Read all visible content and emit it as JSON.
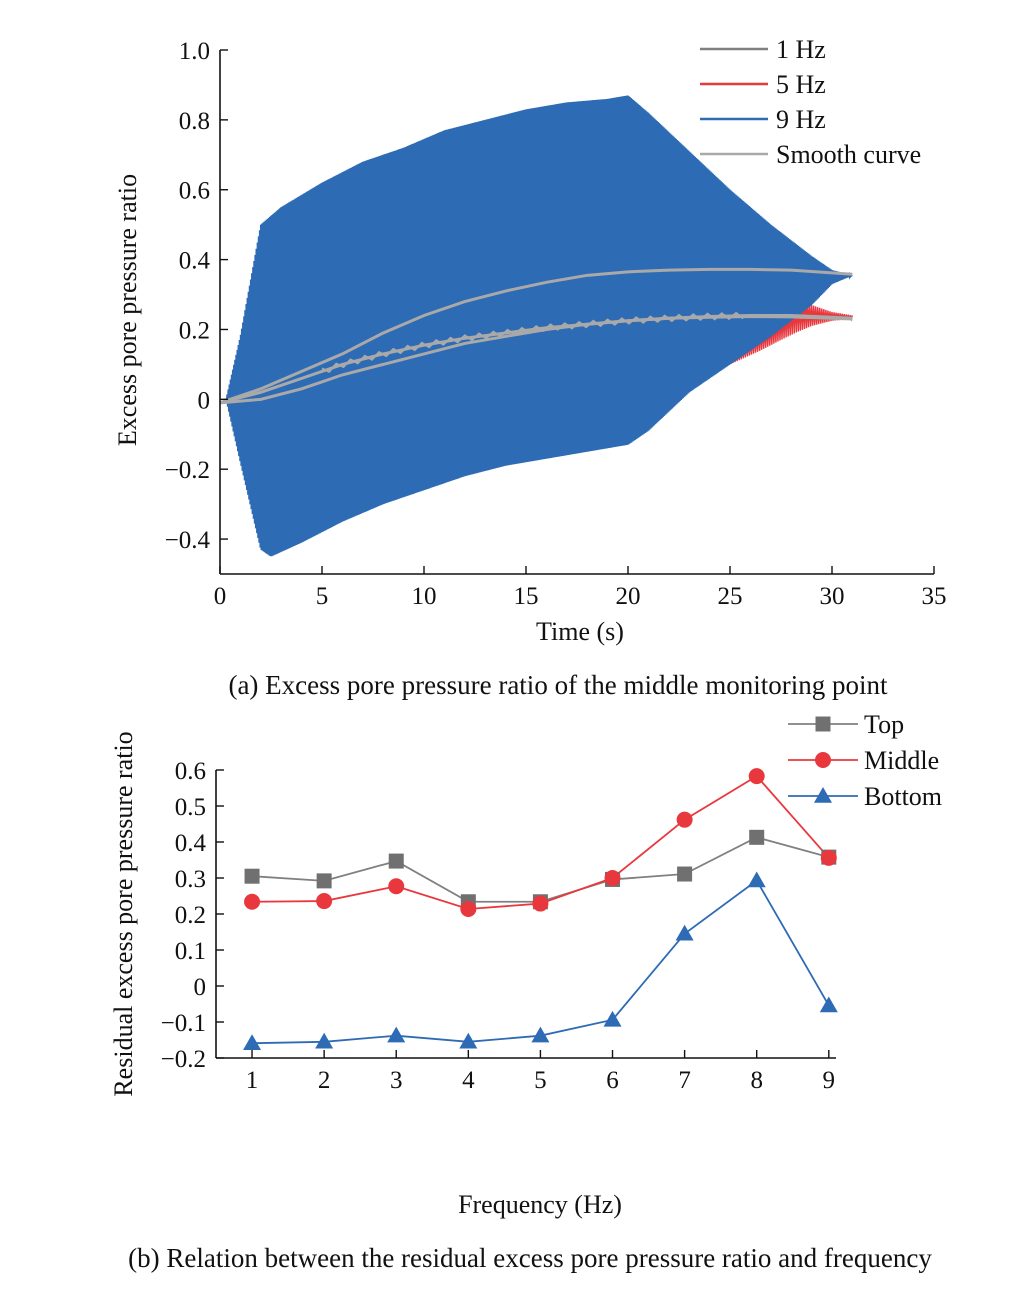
{
  "chart_data": [
    {
      "type": "line",
      "title": "",
      "caption": "(a) Excess pore pressure ratio of the middle monitoring point",
      "xlabel": "Time (s)",
      "ylabel": "Excess pore pressure ratio",
      "xlim": [
        0,
        35
      ],
      "ylim": [
        -0.5,
        1.0
      ],
      "x_ticks": [
        0,
        5,
        10,
        15,
        20,
        25,
        30,
        35
      ],
      "x_tick_labels": [
        "0",
        "5",
        "10",
        "15",
        "20",
        "25",
        "30",
        "35"
      ],
      "y_ticks": [
        -0.4,
        -0.2,
        0,
        0.2,
        0.4,
        0.6,
        0.8,
        1.0
      ],
      "y_tick_labels": [
        "−0.4",
        "−0.2",
        "0",
        "0.2",
        "0.4",
        "0.6",
        "0.8",
        "1.0"
      ],
      "legend_position": "top-right",
      "series": [
        {
          "name": "1 Hz",
          "color": "#808080",
          "envelope_upper": [
            [
              0.2,
              0
            ],
            [
              2,
              0.02
            ],
            [
              4,
              0.08
            ],
            [
              6,
              0.12
            ],
            [
              8,
              0.15
            ],
            [
              10,
              0.17
            ],
            [
              12,
              0.19
            ],
            [
              14,
              0.205
            ],
            [
              16,
              0.215
            ],
            [
              18,
              0.225
            ],
            [
              20,
              0.232
            ],
            [
              22,
              0.237
            ],
            [
              24,
              0.24
            ],
            [
              26,
              0.24
            ],
            [
              28,
              0.24
            ],
            [
              30,
              0.238
            ],
            [
              31,
              0.235
            ]
          ],
          "envelope_lower": [
            [
              0.2,
              0
            ],
            [
              2,
              0.01
            ],
            [
              4,
              0.04
            ],
            [
              6,
              0.07
            ],
            [
              8,
              0.1
            ],
            [
              10,
              0.13
            ],
            [
              12,
              0.16
            ],
            [
              14,
              0.18
            ],
            [
              16,
              0.2
            ],
            [
              18,
              0.215
            ],
            [
              20,
              0.225
            ],
            [
              22,
              0.232
            ],
            [
              24,
              0.235
            ],
            [
              26,
              0.235
            ],
            [
              28,
              0.232
            ],
            [
              30,
              0.23
            ],
            [
              31,
              0.228
            ]
          ]
        },
        {
          "name": "5 Hz",
          "color": "#e8383d",
          "envelope_upper": [
            [
              23.5,
              0.08
            ],
            [
              25,
              0.14
            ],
            [
              26.5,
              0.2
            ],
            [
              27.5,
              0.25
            ],
            [
              28.2,
              0.29
            ],
            [
              29,
              0.27
            ],
            [
              30,
              0.25
            ],
            [
              31,
              0.24
            ]
          ],
          "envelope_lower": [
            [
              23.5,
              0.06
            ],
            [
              25,
              0.1
            ],
            [
              26.5,
              0.14
            ],
            [
              27.5,
              0.17
            ],
            [
              28.2,
              0.19
            ],
            [
              29,
              0.21
            ],
            [
              30,
              0.225
            ],
            [
              31,
              0.23
            ]
          ]
        },
        {
          "name": "9 Hz",
          "color": "#2e6bb5",
          "envelope_upper": [
            [
              0.3,
              0.0
            ],
            [
              1,
              0.18
            ],
            [
              2,
              0.5
            ],
            [
              3,
              0.55
            ],
            [
              5,
              0.62
            ],
            [
              7,
              0.68
            ],
            [
              9,
              0.72
            ],
            [
              11,
              0.77
            ],
            [
              13,
              0.8
            ],
            [
              15,
              0.83
            ],
            [
              17,
              0.85
            ],
            [
              19,
              0.86
            ],
            [
              20,
              0.87
            ],
            [
              21,
              0.82
            ],
            [
              23,
              0.71
            ],
            [
              25,
              0.6
            ],
            [
              27,
              0.5
            ],
            [
              29,
              0.41
            ],
            [
              30,
              0.37
            ],
            [
              31,
              0.355
            ]
          ],
          "envelope_lower": [
            [
              0.3,
              0.0
            ],
            [
              1,
              -0.18
            ],
            [
              2,
              -0.43
            ],
            [
              2.5,
              -0.45
            ],
            [
              4,
              -0.41
            ],
            [
              6,
              -0.35
            ],
            [
              8,
              -0.3
            ],
            [
              10,
              -0.26
            ],
            [
              12,
              -0.22
            ],
            [
              14,
              -0.19
            ],
            [
              16,
              -0.17
            ],
            [
              18,
              -0.15
            ],
            [
              20,
              -0.13
            ],
            [
              21,
              -0.09
            ],
            [
              23,
              0.02
            ],
            [
              25,
              0.1
            ],
            [
              27,
              0.18
            ],
            [
              29,
              0.27
            ],
            [
              30,
              0.33
            ],
            [
              31,
              0.355
            ]
          ]
        },
        {
          "name": "Smooth curve",
          "color": "#a9a9a9",
          "curves": [
            {
              "label": "9 Hz",
              "x": [
                0,
                2,
                4,
                6,
                8,
                10,
                12,
                14,
                16,
                18,
                20,
                22,
                24,
                26,
                28,
                30,
                31
              ],
              "y": [
                -0.01,
                0.03,
                0.08,
                0.13,
                0.19,
                0.24,
                0.28,
                0.31,
                0.335,
                0.355,
                0.365,
                0.37,
                0.372,
                0.372,
                0.37,
                0.362,
                0.358
              ]
            },
            {
              "label": "5 Hz",
              "x": [
                0,
                2,
                4,
                6,
                8,
                10,
                12,
                14,
                16,
                18,
                20,
                22,
                24,
                26,
                28,
                30,
                31
              ],
              "y": [
                -0.01,
                0.02,
                0.06,
                0.1,
                0.13,
                0.155,
                0.175,
                0.19,
                0.205,
                0.215,
                0.225,
                0.232,
                0.237,
                0.24,
                0.24,
                0.235,
                0.232
              ]
            },
            {
              "label": "1 Hz",
              "x": [
                0,
                2,
                4,
                6,
                8,
                10,
                12,
                14,
                16,
                18,
                20,
                22,
                24,
                26,
                28,
                30,
                31
              ],
              "y": [
                -0.01,
                0.0,
                0.03,
                0.07,
                0.1,
                0.13,
                0.16,
                0.18,
                0.2,
                0.215,
                0.225,
                0.232,
                0.235,
                0.237,
                0.236,
                0.232,
                0.23
              ]
            }
          ]
        }
      ]
    },
    {
      "type": "line",
      "title": "",
      "caption": "(b) Relation between the residual excess pore pressure ratio and frequency",
      "xlabel": "Frequency (Hz)",
      "ylabel": "Residual excess pore pressure ratio",
      "xlim": [
        0.5,
        9.1
      ],
      "ylim": [
        -0.2,
        0.6
      ],
      "x_ticks": [
        1,
        2,
        3,
        4,
        5,
        6,
        7,
        8,
        9
      ],
      "x_tick_labels": [
        "1",
        "2",
        "3",
        "4",
        "5",
        "6",
        "7",
        "8",
        "9"
      ],
      "y_ticks": [
        -0.2,
        -0.1,
        0,
        0.1,
        0.2,
        0.3,
        0.4,
        0.5,
        0.6
      ],
      "y_tick_labels": [
        "−0.2",
        "−0.1",
        "0",
        "0.1",
        "0.2",
        "0.3",
        "0.4",
        "0.5",
        "0.6"
      ],
      "legend_position": "top-right",
      "categories": [
        1,
        2,
        3,
        4,
        5,
        6,
        7,
        8,
        9
      ],
      "series": [
        {
          "name": "Top",
          "color": "#707070",
          "line_color": "#808080",
          "marker": "square",
          "values": [
            0.305,
            0.292,
            0.347,
            0.234,
            0.234,
            0.296,
            0.311,
            0.413,
            0.358
          ]
        },
        {
          "name": "Middle",
          "color": "#e8383d",
          "line_color": "#e8383d",
          "marker": "circle",
          "values": [
            0.234,
            0.236,
            0.277,
            0.214,
            0.229,
            0.3,
            0.462,
            0.583,
            0.356
          ]
        },
        {
          "name": "Bottom",
          "color": "#2e6bb5",
          "line_color": "#2e6bb5",
          "marker": "triangle",
          "values": [
            -0.159,
            -0.155,
            -0.138,
            -0.155,
            -0.138,
            -0.094,
            0.145,
            0.293,
            -0.054
          ]
        }
      ]
    }
  ]
}
